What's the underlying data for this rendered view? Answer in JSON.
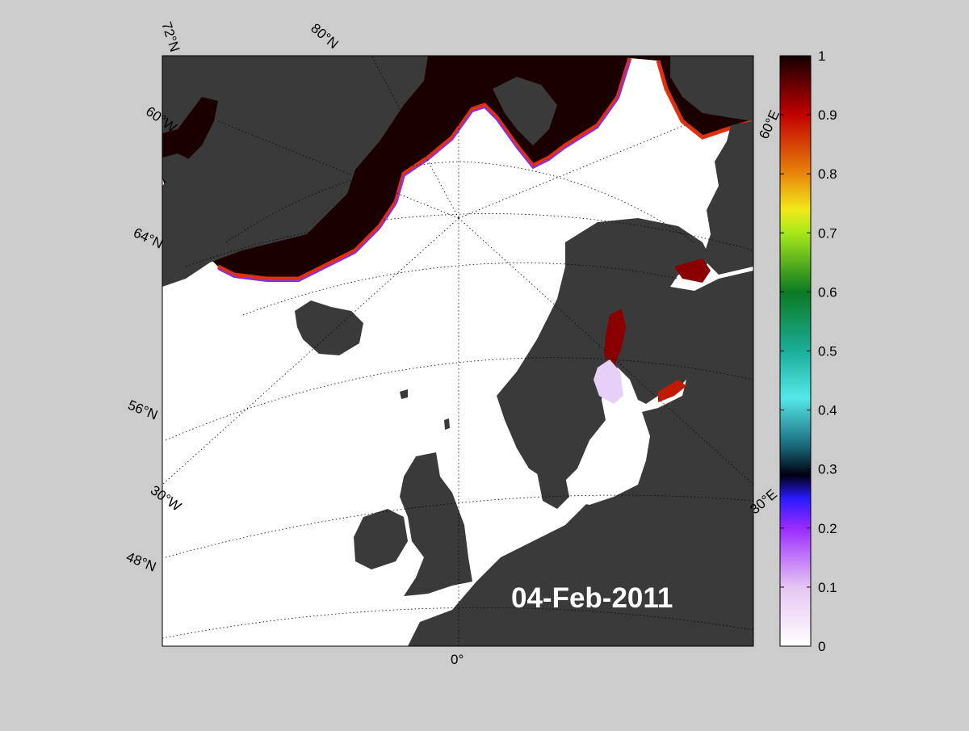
{
  "date_label": "04-Feb-2011",
  "map_labels": {
    "lat_72N": "72°N",
    "lat_80N": "80°N",
    "lon_60W": "60°W",
    "lat_64N": "64°N",
    "lat_56N": "56°N",
    "lon_30W": "30°W",
    "lat_48N": "48°N",
    "lon_0": "0°",
    "lon_60E": "60°E",
    "lon_30E": "30°E"
  },
  "colorbar": {
    "ticks": [
      "0",
      "0.1",
      "0.2",
      "0.3",
      "0.4",
      "0.5",
      "0.6",
      "0.7",
      "0.8",
      "0.9",
      "1"
    ]
  },
  "colors": {
    "background": "#cccccc",
    "land": "#3a3a3a",
    "land_alt": "#808080",
    "ocean": "#ffffff",
    "ice_full": "#1a0000"
  }
}
